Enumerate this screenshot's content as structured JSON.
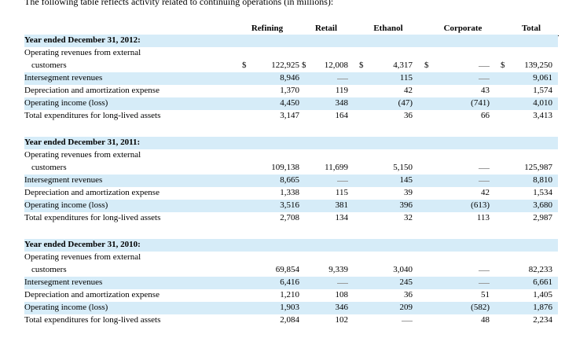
{
  "intro": "The following table reflects activity related to continuing operations (in millions):",
  "columns": [
    "Refining",
    "Retail",
    "Ethanol",
    "Corporate",
    "Total"
  ],
  "dollar_sign": "$",
  "row_labels": {
    "revenue_line1": "Operating revenues from external",
    "revenue_line2": "customers",
    "intersegment": "Intersegment revenues",
    "depreciation": "Depreciation and amortization expense",
    "operating_income": "Operating income (loss)",
    "expenditures": "Total expenditures for long-lived assets"
  },
  "sections": [
    {
      "title": "Year ended December 31, 2012:",
      "rows": [
        [
          "122,925",
          "12,008",
          "4,317",
          "—",
          "139,250"
        ],
        [
          "8,946",
          "—",
          "115",
          "—",
          "9,061"
        ],
        [
          "1,370",
          "119",
          "42",
          "43",
          "1,574"
        ],
        [
          "4,450",
          "348",
          "(47)",
          "(741)",
          "4,010"
        ],
        [
          "3,147",
          "164",
          "36",
          "66",
          "3,413"
        ]
      ]
    },
    {
      "title": "Year ended December 31, 2011:",
      "rows": [
        [
          "109,138",
          "11,699",
          "5,150",
          "—",
          "125,987"
        ],
        [
          "8,665",
          "—",
          "145",
          "—",
          "8,810"
        ],
        [
          "1,338",
          "115",
          "39",
          "42",
          "1,534"
        ],
        [
          "3,516",
          "381",
          "396",
          "(613)",
          "3,680"
        ],
        [
          "2,708",
          "134",
          "32",
          "113",
          "2,987"
        ]
      ]
    },
    {
      "title": "Year ended December 31, 2010:",
      "rows": [
        [
          "69,854",
          "9,339",
          "3,040",
          "—",
          "82,233"
        ],
        [
          "6,416",
          "—",
          "245",
          "—",
          "6,661"
        ],
        [
          "1,210",
          "108",
          "36",
          "51",
          "1,405"
        ],
        [
          "1,903",
          "346",
          "209",
          "(582)",
          "1,876"
        ],
        [
          "2,084",
          "102",
          "—",
          "48",
          "2,234"
        ]
      ]
    }
  ]
}
